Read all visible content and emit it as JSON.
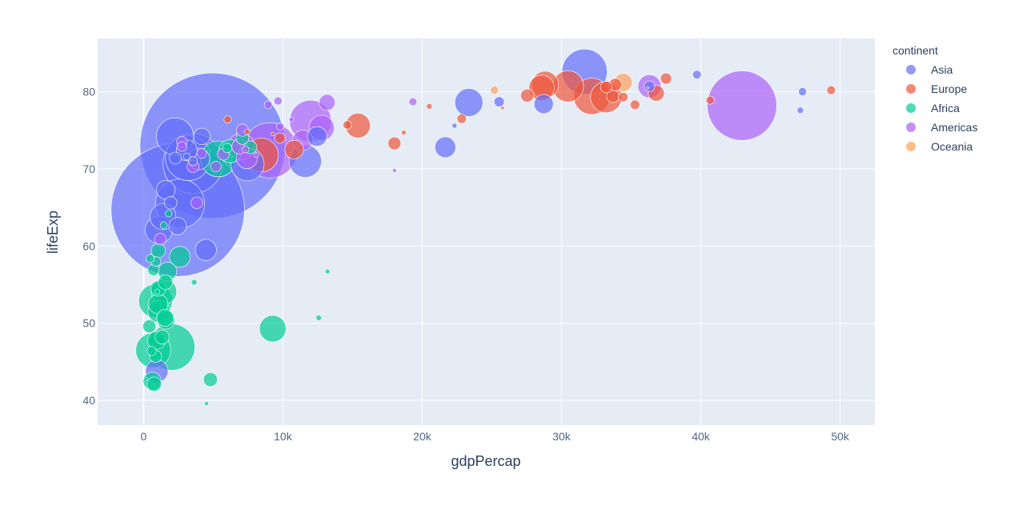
{
  "chart_data": {
    "type": "scatter",
    "title": "",
    "xlabel": "gdpPercap",
    "ylabel": "lifeExp",
    "xlim": [
      -3300,
      52500
    ],
    "ylim": [
      36.8,
      86.9
    ],
    "xticks": [
      {
        "value": 0,
        "label": "0"
      },
      {
        "value": 10000,
        "label": "10k"
      },
      {
        "value": 20000,
        "label": "20k"
      },
      {
        "value": 30000,
        "label": "30k"
      },
      {
        "value": 40000,
        "label": "40k"
      },
      {
        "value": 50000,
        "label": "50k"
      }
    ],
    "yticks": [
      {
        "value": 40,
        "label": "40"
      },
      {
        "value": 50,
        "label": "50"
      },
      {
        "value": 60,
        "label": "60"
      },
      {
        "value": 70,
        "label": "70"
      },
      {
        "value": 80,
        "label": "80"
      }
    ],
    "grid": true,
    "plot_background": "#e5ecf6",
    "legend": {
      "title": "continent",
      "placement": "right"
    },
    "size_note": "marker area proportional to population (pop)",
    "series": [
      {
        "name": "Asia",
        "color": "#636efa",
        "points": [
          [
            4959,
            73.0,
            1319
          ],
          [
            2452,
            64.7,
            1110
          ],
          [
            3541,
            70.7,
            223
          ],
          [
            2606,
            65.5,
            150
          ],
          [
            2253,
            74.2,
            86
          ],
          [
            3190,
            71.4,
            127
          ],
          [
            1091,
            62.1,
            47
          ],
          [
            1391,
            63.8,
            42
          ],
          [
            7458,
            70.6,
            69
          ],
          [
            31656,
            82.6,
            127
          ],
          [
            11606,
            71.0,
            65
          ],
          [
            23348,
            78.6,
            49
          ],
          [
            21655,
            72.8,
            27
          ],
          [
            4471,
            59.5,
            28
          ],
          [
            1593,
            67.3,
            22
          ],
          [
            3970,
            71.3,
            29
          ],
          [
            2442,
            62.6,
            19
          ],
          [
            12452,
            74.2,
            24
          ],
          [
            28718,
            78.4,
            23
          ],
          [
            3095,
            72.4,
            27
          ],
          [
            4185,
            74.2,
            17
          ],
          [
            944,
            43.8,
            32
          ],
          [
            36319,
            80.7,
            7
          ],
          [
            47307,
            80.0,
            4
          ],
          [
            39725,
            82.2,
            4.5
          ],
          [
            25523,
            78.7,
            6.4
          ],
          [
            22316,
            75.6,
            1.5
          ],
          [
            47143,
            77.6,
            2.5
          ],
          [
            2281,
            71.4,
            9
          ],
          [
            1940,
            65.6,
            10
          ],
          [
            3548,
            71.0,
            5
          ],
          [
            3096,
            71.6,
            3
          ]
        ]
      },
      {
        "name": "Europe",
        "color": "#ef553b",
        "points": [
          [
            32170,
            79.4,
            82
          ],
          [
            33203,
            79.3,
            61
          ],
          [
            30470,
            80.7,
            61
          ],
          [
            28570,
            80.5,
            40
          ],
          [
            28822,
            80.9,
            45
          ],
          [
            15390,
            75.6,
            38
          ],
          [
            8458,
            71.8,
            71
          ],
          [
            10808,
            72.5,
            22
          ],
          [
            9787,
            74.0,
            7
          ],
          [
            33693,
            79.4,
            10
          ],
          [
            36798,
            79.8,
            16
          ],
          [
            33860,
            80.9,
            10
          ],
          [
            27538,
            79.5,
            10.6
          ],
          [
            33207,
            80.6,
            8.2
          ],
          [
            37506,
            81.7,
            7.6
          ],
          [
            35278,
            78.3,
            5.5
          ],
          [
            34435,
            79.3,
            5.5
          ],
          [
            18008,
            73.3,
            10.2
          ],
          [
            20510,
            78.1,
            2
          ],
          [
            14619,
            75.7,
            4.5
          ],
          [
            22833,
            76.5,
            5.4
          ],
          [
            49357,
            80.2,
            4.6
          ],
          [
            40676,
            78.9,
            4.1
          ],
          [
            25768,
            77.9,
            0.7
          ],
          [
            36181,
            80.5,
            0.3
          ],
          [
            18678,
            74.7,
            1.3
          ],
          [
            6030,
            76.4,
            3.6
          ],
          [
            7446,
            74.8,
            2.0
          ],
          [
            9254,
            74.5,
            0.7
          ]
        ]
      },
      {
        "name": "Africa",
        "color": "#00cc96",
        "points": [
          [
            2014,
            46.9,
            135
          ],
          [
            5371,
            71.3,
            80
          ],
          [
            690,
            46.5,
            76
          ],
          [
            9270,
            49.3,
            44
          ],
          [
            1463,
            54.1,
            40
          ],
          [
            6223,
            72.3,
            33
          ],
          [
            2602,
            58.6,
            27
          ],
          [
            863,
            52.9,
            71
          ],
          [
            1107,
            51.5,
            31
          ],
          [
            1545,
            50.7,
            18
          ],
          [
            7093,
            74.0,
            10
          ],
          [
            926,
            47.8,
            20
          ],
          [
            1044,
            52.5,
            24
          ],
          [
            1598,
            50.4,
            20
          ],
          [
            4797,
            42.7,
            12
          ],
          [
            1056,
            59.4,
            13
          ],
          [
            1328,
            48.2,
            12
          ],
          [
            759,
            42.1,
            13
          ],
          [
            1569,
            55.3,
            12.9
          ],
          [
            1712,
            56.7,
            22
          ],
          [
            620,
            42.5,
            20
          ],
          [
            415,
            49.6,
            10.7
          ],
          [
            1042,
            54.5,
            14.3
          ],
          [
            12570,
            50.7,
            2
          ],
          [
            7670,
            72.8,
            10.3
          ],
          [
            6000,
            72.7,
            5.5
          ],
          [
            13206,
            56.7,
            1.4
          ],
          [
            3633,
            55.3,
            2.0
          ],
          [
            4513,
            39.6,
            1.1
          ],
          [
            706,
            56.9,
            8.1
          ],
          [
            579,
            46.4,
            5.3
          ],
          [
            883,
            58.0,
            6.2
          ],
          [
            1441,
            62.7,
            3.1
          ],
          [
            1803,
            64.2,
            3.0
          ],
          [
            863,
            45.7,
            9.1
          ],
          [
            470,
            58.4,
            4.1
          ],
          [
            986,
            54.1,
            1.6
          ]
        ]
      },
      {
        "name": "Americas",
        "color": "#ab63fa",
        "points": [
          [
            42952,
            78.2,
            301
          ],
          [
            9066,
            72.4,
            190
          ],
          [
            11978,
            76.2,
            108
          ],
          [
            36319,
            80.7,
            33
          ],
          [
            7007,
            72.9,
            44
          ],
          [
            12779,
            75.3,
            40
          ],
          [
            7409,
            71.4,
            28
          ],
          [
            11416,
            73.7,
            26
          ],
          [
            13172,
            78.6,
            16
          ],
          [
            8948,
            78.3,
            4
          ],
          [
            7092,
            75.0,
            9.2
          ],
          [
            6873,
            72.9,
            13.8
          ],
          [
            5728,
            71.9,
            9.1
          ],
          [
            5186,
            70.3,
            7.0
          ],
          [
            3822,
            65.6,
            8.5
          ],
          [
            2749,
            72.9,
            5.7
          ],
          [
            7321,
            72.5,
            3.0
          ],
          [
            9646,
            78.8,
            4.1
          ],
          [
            10611,
            76.4,
            1.3
          ],
          [
            8098,
            71.8,
            1.3
          ],
          [
            1202,
            60.9,
            8.5
          ],
          [
            9809,
            75.5,
            3.4
          ],
          [
            4172,
            72.0,
            6.0
          ],
          [
            3548,
            70.3,
            9.0
          ],
          [
            18009,
            69.8,
            1.0
          ],
          [
            19329,
            78.7,
            3.9
          ],
          [
            2749,
            73.5,
            6.9
          ]
        ]
      },
      {
        "name": "Oceania",
        "color": "#ffa15a",
        "points": [
          [
            34435,
            81.2,
            20.4
          ],
          [
            25185,
            80.2,
            4.1
          ]
        ]
      }
    ]
  }
}
